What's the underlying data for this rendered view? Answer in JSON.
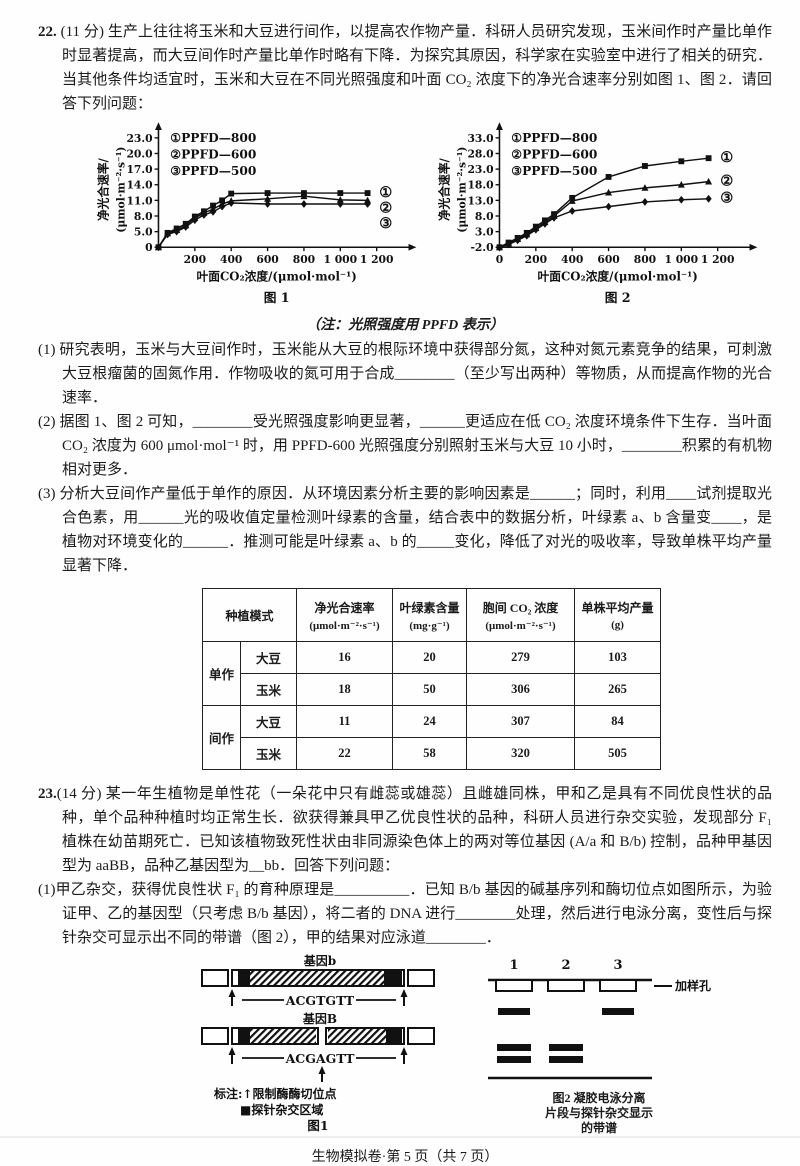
{
  "page": {
    "footer": "生物模拟卷·第 5 页（共 7 页）"
  },
  "q22": {
    "number": "22.",
    "stem": "(11 分) 生产上往往将玉米和大豆进行间作，以提高农作物产量．科研人员研究发现，玉米间作时产量比单作时显著提高，而大豆间作时产量比单作时略有下降．为探究其原因，科学家在实验室中进行了相关的研究．当其他条件均适宜时，玉米和大豆在不同光照强度和叶面 CO₂ 浓度下的净光合速率分别如图 1、图 2．请回答下列问题：",
    "note": "（注：光照强度用 PPFD 表示）",
    "parts": [
      {
        "label": "(1)",
        "text": "研究表明，玉米与大豆间作时，玉米能从大豆的根际环境中获得部分氮，这种对氮元素竞争的结果，可刺激大豆根瘤菌的固氮作用．作物吸收的氮可用于合成________（至少写出两种）等物质，从而提高作物的光合速率．"
      },
      {
        "label": "(2)",
        "text": "据图 1、图 2 可知，________受光照强度影响更显著，______更适应在低 CO₂ 浓度环境条件下生存．当叶面 CO₂ 浓度为 600 μmol·mol⁻¹ 时，用 PPFD-600 光照强度分别照射玉米与大豆 10 小时，________积累的有机物相对更多．"
      },
      {
        "label": "(3)",
        "text": "分析大豆间作产量低于单作的原因．从环境因素分析主要的影响因素是______；同时，利用____试剂提取光合色素，用______光的吸收值定量检测叶绿素的含量，结合表中的数据分析，叶绿素 a、b 含量变____，是植物对环境变化的______．推测可能是叶绿素 a、b 的_____变化，降低了对光的吸收率，导致单株平均产量显著下降．"
      }
    ]
  },
  "chart_data": [
    {
      "type": "line",
      "title": "图 1",
      "xlabel": "叶面CO₂浓度/(μmol·mol⁻¹)",
      "ylabel": "净光合速率/",
      "ylabel2": "(μmol·m⁻²·s⁻¹)",
      "legend": [
        "①PPFD—800",
        "②PPFD—600",
        "③PPFD—500"
      ],
      "xlim": [
        0,
        1300
      ],
      "x_ticks": [
        200,
        400,
        600,
        800,
        1000,
        1200
      ],
      "x_tick_labels": [
        "200",
        "400",
        "600",
        "800",
        "1 000",
        "1 200"
      ],
      "y_ticks": [
        0,
        5,
        8,
        11,
        14,
        17,
        20,
        23
      ],
      "y_tick_labels": [
        "0",
        "5.0",
        "8.0",
        "11.0",
        "14.0",
        "17.0",
        "20.0",
        "23.0"
      ],
      "x": [
        0,
        50,
        100,
        150,
        200,
        250,
        300,
        350,
        400,
        600,
        800,
        1000,
        1150
      ],
      "series": [
        {
          "name": "①",
          "marker": "square",
          "values": [
            0,
            4.6,
            5.6,
            6.5,
            7.9,
            8.9,
            10.0,
            11.0,
            12.3,
            12.4,
            12.4,
            12.4,
            12.4
          ]
        },
        {
          "name": "②",
          "marker": "triangle",
          "values": [
            0,
            4.4,
            5.3,
            6.2,
            7.6,
            8.6,
            9.3,
            10.3,
            10.9,
            11.3,
            11.8,
            11.1,
            11.0
          ]
        },
        {
          "name": "③",
          "marker": "diamond",
          "values": [
            0,
            4.1,
            5.0,
            5.9,
            7.2,
            8.2,
            8.8,
            9.8,
            10.5,
            10.3,
            10.3,
            10.3,
            10.3
          ]
        }
      ]
    },
    {
      "type": "line",
      "title": "图 2",
      "xlabel": "叶面CO₂浓度/(μmol·mol⁻¹)",
      "ylabel": "净光合速率/",
      "ylabel2": "(μmol·m⁻²·s⁻¹)",
      "legend": [
        "①PPFD—800",
        "②PPFD—600",
        "③PPFD—500"
      ],
      "xlim": [
        0,
        1300
      ],
      "x_ticks": [
        0,
        200,
        400,
        600,
        800,
        1000,
        1200
      ],
      "x_tick_labels": [
        "0",
        "200",
        "400",
        "600",
        "800",
        "1 000",
        "1 200"
      ],
      "y_ticks": [
        -2,
        3,
        8,
        13,
        18,
        23,
        28,
        33
      ],
      "y_tick_labels": [
        "-2.0",
        "3.0",
        "8.0",
        "13.0",
        "18.0",
        "23.0",
        "28.0",
        "33.0"
      ],
      "x": [
        0,
        50,
        100,
        150,
        200,
        250,
        300,
        400,
        600,
        800,
        1000,
        1150
      ],
      "series": [
        {
          "name": "①",
          "marker": "square",
          "values": [
            -2,
            -0.5,
            1.0,
            2.6,
            4.6,
            6.6,
            8.6,
            13.8,
            20.5,
            24.0,
            25.5,
            26.5
          ]
        },
        {
          "name": "②",
          "marker": "triangle",
          "values": [
            -2,
            -0.8,
            0.6,
            2.1,
            4.1,
            6.0,
            8.0,
            12.8,
            15.5,
            17.0,
            18.0,
            19.0
          ]
        },
        {
          "name": "③",
          "marker": "diamond",
          "values": [
            -2,
            -1.1,
            0.2,
            1.7,
            3.6,
            5.5,
            7.4,
            9.6,
            11.0,
            12.5,
            13.2,
            13.5
          ]
        }
      ]
    }
  ],
  "table": {
    "headers": [
      {
        "name": "种植模式",
        "unit": ""
      },
      {
        "name": "净光合速率",
        "unit": "(μmol·m⁻²·s⁻¹)"
      },
      {
        "name": "叶绿素含量",
        "unit": "(mg·g⁻¹)"
      },
      {
        "name": "胞间 CO₂ 浓度",
        "unit": "(μmol·m⁻²·s⁻¹)"
      },
      {
        "name": "单株平均产量",
        "unit": "(g)"
      }
    ],
    "groups": [
      {
        "mode": "单作",
        "rows": [
          {
            "crop": "大豆",
            "values": [
              "16",
              "20",
              "279",
              "103"
            ]
          },
          {
            "crop": "玉米",
            "values": [
              "18",
              "50",
              "306",
              "265"
            ]
          }
        ]
      },
      {
        "mode": "间作",
        "rows": [
          {
            "crop": "大豆",
            "values": [
              "11",
              "24",
              "307",
              "84"
            ]
          },
          {
            "crop": "玉米",
            "values": [
              "22",
              "58",
              "320",
              "505"
            ]
          }
        ]
      }
    ]
  },
  "q23": {
    "number": "23.",
    "stem": "(14 分) 某一年生植物是单性花（一朵花中只有雌蕊或雄蕊）且雌雄同株，甲和乙是具有不同优良性状的品种，单个品种种植时均正常生长．欲获得兼具甲乙优良性状的品种，科研人员进行杂交实验，发现部分 F₁ 植株在幼苗期死亡．已知该植物致死性状由非同源染色体上的两对等位基因 (A/a 和 B/b) 控制，品种甲基因型为 aaBB，品种乙基因型为__bb．回答下列问题：",
    "parts": [
      {
        "label": "(1)",
        "text": "甲乙杂交，获得优良性状 F₁ 的育种原理是__________．已知 B/b 基因的碱基序列和酶切位点如图所示，为验证甲、乙的基因型（只考虑 B/b 基因），将二者的 DNA 进行________处理，然后进行电泳分离，变性后与探针杂交可显示出不同的带谱（图 2），甲的结果对应泳道________．"
      }
    ]
  },
  "fig1": {
    "gene_b_title": "基因b",
    "gene_B_title": "基因B",
    "seq_b": "ACGTGTT",
    "seq_B": "ACGAGTT",
    "note1": "标注:↑限制酶酶切位点",
    "note2": "■探针杂交区域",
    "caption": "图1"
  },
  "gel": {
    "well_label": "加样孔",
    "lanes": [
      {
        "label": "1",
        "upper": true,
        "lower": true
      },
      {
        "label": "2",
        "upper": false,
        "lower": true
      },
      {
        "label": "3",
        "upper": true,
        "lower": false
      }
    ],
    "caption_lines": [
      "图2  凝胶电泳分离",
      "片段与探针杂交显示",
      "的带谱"
    ]
  }
}
